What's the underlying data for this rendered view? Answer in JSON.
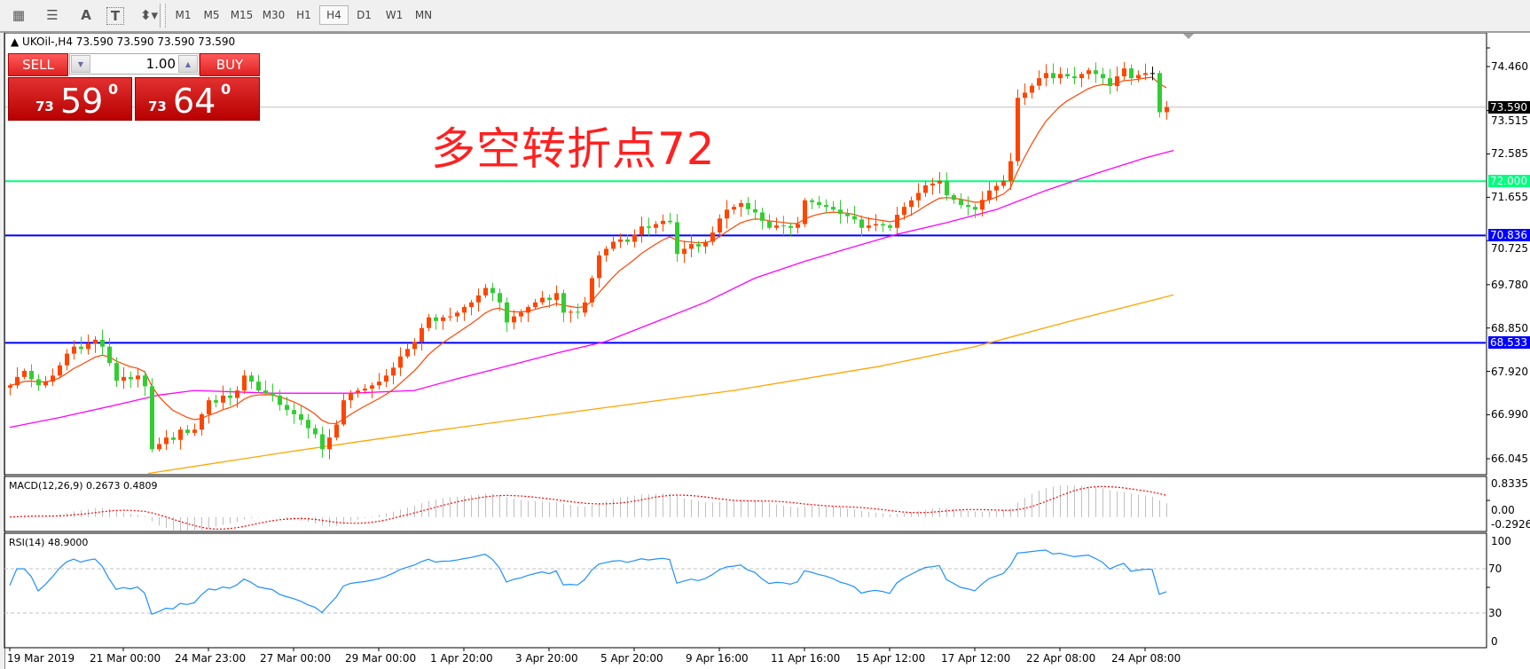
{
  "toolbar": {
    "tools": [
      {
        "icon": "chart-properties-icon",
        "glyph": "▦"
      },
      {
        "icon": "fibonacci-icon",
        "glyph": "☰"
      },
      {
        "icon": "text-tool-icon",
        "glyph": "A"
      },
      {
        "icon": "text-label-tool-icon",
        "glyph": "T"
      },
      {
        "icon": "arrows-tool-icon",
        "glyph": "⬍▾"
      }
    ],
    "timeframes": [
      "M1",
      "M5",
      "M15",
      "M30",
      "H1",
      "H4",
      "D1",
      "W1",
      "MN"
    ],
    "active_timeframe": "H4"
  },
  "chart": {
    "header": "▲ UKOil-,H4  73.590 73.590 73.590 73.590",
    "annotation": "多空转折点72",
    "shift_marker_icon": "chart-shift-triangle-icon"
  },
  "trade_panel": {
    "sell_label": "SELL",
    "buy_label": "BUY",
    "lot": "1.00",
    "sell_price": {
      "prefix": "73",
      "main": "59",
      "sup": "0"
    },
    "buy_price": {
      "prefix": "73",
      "main": "64",
      "sup": "0"
    },
    "down_icon": "spin-down-icon",
    "up_icon": "spin-up-icon"
  },
  "colors": {
    "bull": "#ff4500",
    "bear": "#32cd32",
    "doji": "#000000",
    "ma_fast": "#ff4500",
    "ma_mid": "#ff00ff",
    "ma_slow": "#ffa500",
    "level_green": "#00ff7f",
    "level_blue": "#0000ff",
    "bid_line": "#c0c0c0",
    "macd_hist": "#c0c0c0",
    "macd_signal": "#ff0000",
    "rsi": "#1e90ff"
  },
  "chart_data": {
    "type": "candlestick",
    "symbol": "UKOil-",
    "timeframe": "H4",
    "price_ticks": [
      "74.460",
      "73.515",
      "72.585",
      "71.655",
      "70.725",
      "69.780",
      "68.850",
      "67.920",
      "66.990",
      "66.045"
    ],
    "price_tick_values": [
      74.46,
      73.515,
      72.585,
      71.655,
      70.725,
      69.78,
      68.85,
      67.92,
      66.99,
      66.045
    ],
    "levels": [
      {
        "value": 73.59,
        "label": "73.590",
        "kind": "bid"
      },
      {
        "value": 72.0,
        "label": "72.000",
        "kind": "green"
      },
      {
        "value": 70.836,
        "label": "70.836",
        "kind": "blue"
      },
      {
        "value": 68.533,
        "label": "68.533",
        "kind": "blue"
      }
    ],
    "x_labels": [
      {
        "bar": 0,
        "text": "19 Mar 2019"
      },
      {
        "bar": 16,
        "text": "21 Mar 00:00"
      },
      {
        "bar": 28,
        "text": "24 Mar 23:00"
      },
      {
        "bar": 40,
        "text": "27 Mar 00:00"
      },
      {
        "bar": 52,
        "text": "29 Mar 00:00"
      },
      {
        "bar": 64,
        "text": "1 Apr 20:00"
      },
      {
        "bar": 76,
        "text": "3 Apr 20:00"
      },
      {
        "bar": 88,
        "text": "5 Apr 20:00"
      },
      {
        "bar": 100,
        "text": "9 Apr 16:00"
      },
      {
        "bar": 112,
        "text": "11 Apr 16:00"
      },
      {
        "bar": 124,
        "text": "15 Apr 12:00"
      },
      {
        "bar": 136,
        "text": "17 Apr 12:00"
      },
      {
        "bar": 148,
        "text": "22 Apr 08:00"
      },
      {
        "bar": 160,
        "text": "24 Apr 08:00"
      }
    ],
    "closes": [
      67.62,
      67.8,
      67.93,
      67.75,
      67.62,
      67.7,
      67.83,
      68.05,
      68.3,
      68.45,
      68.4,
      68.52,
      68.6,
      68.45,
      68.1,
      67.72,
      67.8,
      67.75,
      67.83,
      67.6,
      66.25,
      66.36,
      66.5,
      66.45,
      66.67,
      66.6,
      66.67,
      67.0,
      67.3,
      67.25,
      67.4,
      67.35,
      67.51,
      67.83,
      67.7,
      67.51,
      67.45,
      67.4,
      67.2,
      67.09,
      67.0,
      66.88,
      66.7,
      66.57,
      66.25,
      66.5,
      66.78,
      67.3,
      67.45,
      67.51,
      67.55,
      67.62,
      67.7,
      67.83,
      68.0,
      68.24,
      68.4,
      68.55,
      68.85,
      69.08,
      69.0,
      69.08,
      69.1,
      69.18,
      69.3,
      69.4,
      69.55,
      69.71,
      69.6,
      69.4,
      68.97,
      69.1,
      69.18,
      69.3,
      69.4,
      69.5,
      69.45,
      69.6,
      69.18,
      69.2,
      69.18,
      69.4,
      69.92,
      70.41,
      70.55,
      70.7,
      70.75,
      70.7,
      70.85,
      71.03,
      71.0,
      71.08,
      71.15,
      71.12,
      70.44,
      70.55,
      70.65,
      70.6,
      70.7,
      70.9,
      71.2,
      71.39,
      71.45,
      71.53,
      71.4,
      71.33,
      71.15,
      71.0,
      71.05,
      71.04,
      71.0,
      71.08,
      71.59,
      71.55,
      71.49,
      71.45,
      71.39,
      71.3,
      71.25,
      71.18,
      71.0,
      71.05,
      71.08,
      71.05,
      71.0,
      71.28,
      71.45,
      71.59,
      71.75,
      71.91,
      71.95,
      72.01,
      71.7,
      71.6,
      71.49,
      71.45,
      71.39,
      71.6,
      71.8,
      71.9,
      72.01,
      72.43,
      73.79,
      73.9,
      74.05,
      74.21,
      74.32,
      74.21,
      74.3,
      74.25,
      74.21,
      74.3,
      74.38,
      74.3,
      74.21,
      74.04,
      74.25,
      74.42,
      74.21,
      74.28,
      74.32,
      74.32,
      73.48,
      73.59
    ],
    "ma_mid": [
      [
        0,
        66.72
      ],
      [
        7,
        66.93
      ],
      [
        15,
        67.2
      ],
      [
        21,
        67.41
      ],
      [
        26,
        67.51
      ],
      [
        37,
        67.45
      ],
      [
        48,
        67.45
      ],
      [
        57,
        67.51
      ],
      [
        63,
        67.76
      ],
      [
        70,
        68.03
      ],
      [
        77,
        68.31
      ],
      [
        84,
        68.56
      ],
      [
        91,
        68.98
      ],
      [
        98,
        69.4
      ],
      [
        105,
        69.92
      ],
      [
        112,
        70.28
      ],
      [
        118,
        70.55
      ],
      [
        125,
        70.86
      ],
      [
        132,
        71.11
      ],
      [
        139,
        71.39
      ],
      [
        146,
        71.8
      ],
      [
        153,
        72.16
      ],
      [
        160,
        72.5
      ],
      [
        164,
        72.66
      ]
    ],
    "ma_slow": [
      [
        19.5,
        65.73
      ],
      [
        40,
        66.21
      ],
      [
        61,
        66.67
      ],
      [
        81.4,
        67.09
      ],
      [
        102,
        67.51
      ],
      [
        122.6,
        68.03
      ],
      [
        136,
        68.45
      ],
      [
        150,
        69.02
      ],
      [
        164,
        69.56
      ]
    ],
    "macd": {
      "label": "MACD(12,26,9) 0.2673 0.4809",
      "ticks": [
        "0.8335",
        "0.00",
        "-0.2926"
      ],
      "range": [
        -0.2926,
        0.8335
      ]
    },
    "rsi": {
      "label": "RSI(14) 48.9000",
      "ticks": [
        "100",
        "70",
        "30",
        "0"
      ],
      "levels": [
        70,
        30
      ],
      "range": [
        0,
        100
      ]
    }
  }
}
